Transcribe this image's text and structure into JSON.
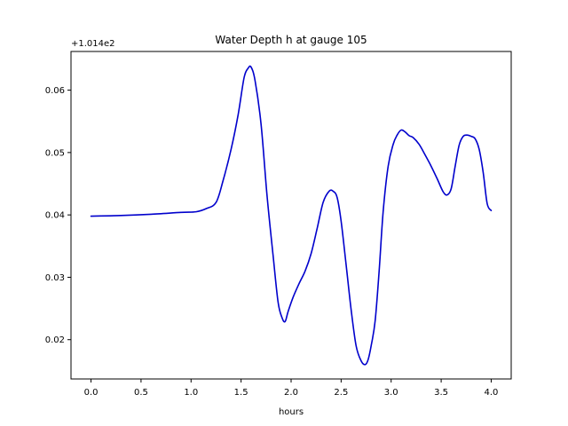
{
  "chart_data": {
    "type": "line",
    "title": "Water Depth h at gauge 105",
    "xlabel": "hours",
    "ylabel": "",
    "offset_text": "+1.014e2",
    "xlim": [
      -0.2,
      4.2
    ],
    "ylim": [
      0.0137,
      0.0662
    ],
    "xticks": [
      0.0,
      0.5,
      1.0,
      1.5,
      2.0,
      2.5,
      3.0,
      3.5,
      4.0
    ],
    "xtick_labels": [
      "0.0",
      "0.5",
      "1.0",
      "1.5",
      "2.0",
      "2.5",
      "3.0",
      "3.5",
      "4.0"
    ],
    "yticks": [
      0.02,
      0.03,
      0.04,
      0.05,
      0.06
    ],
    "ytick_labels": [
      "0.02",
      "0.03",
      "0.04",
      "0.05",
      "0.06"
    ],
    "grid": false,
    "legend": "none",
    "series": [
      {
        "color": "#0000cc",
        "x": [
          0.0,
          0.3,
          0.6,
          0.9,
          1.05,
          1.15,
          1.25,
          1.32,
          1.4,
          1.47,
          1.53,
          1.57,
          1.6,
          1.64,
          1.7,
          1.76,
          1.82,
          1.87,
          1.91,
          1.94,
          1.97,
          2.02,
          2.08,
          2.14,
          2.2,
          2.26,
          2.32,
          2.38,
          2.42,
          2.46,
          2.5,
          2.55,
          2.6,
          2.65,
          2.7,
          2.74,
          2.77,
          2.8,
          2.84,
          2.88,
          2.92,
          2.97,
          3.02,
          3.06,
          3.1,
          3.14,
          3.18,
          3.22,
          3.28,
          3.34,
          3.4,
          3.46,
          3.52,
          3.56,
          3.6,
          3.64,
          3.68,
          3.72,
          3.76,
          3.8,
          3.84,
          3.88,
          3.92,
          3.96,
          4.0
        ],
        "y": [
          0.0398,
          0.0399,
          0.0401,
          0.0404,
          0.0405,
          0.041,
          0.042,
          0.0455,
          0.0505,
          0.056,
          0.062,
          0.0635,
          0.0637,
          0.0615,
          0.0545,
          0.043,
          0.0335,
          0.026,
          0.0235,
          0.0229,
          0.0245,
          0.0268,
          0.029,
          0.031,
          0.0338,
          0.0378,
          0.042,
          0.0438,
          0.0438,
          0.0428,
          0.039,
          0.032,
          0.0248,
          0.019,
          0.0166,
          0.016,
          0.0168,
          0.019,
          0.023,
          0.031,
          0.0405,
          0.0478,
          0.0513,
          0.0528,
          0.0536,
          0.0533,
          0.0527,
          0.0524,
          0.0513,
          0.0496,
          0.0478,
          0.0458,
          0.0437,
          0.0432,
          0.0442,
          0.0478,
          0.0512,
          0.0526,
          0.0528,
          0.0526,
          0.0522,
          0.0505,
          0.0468,
          0.0418,
          0.0407
        ]
      }
    ]
  }
}
